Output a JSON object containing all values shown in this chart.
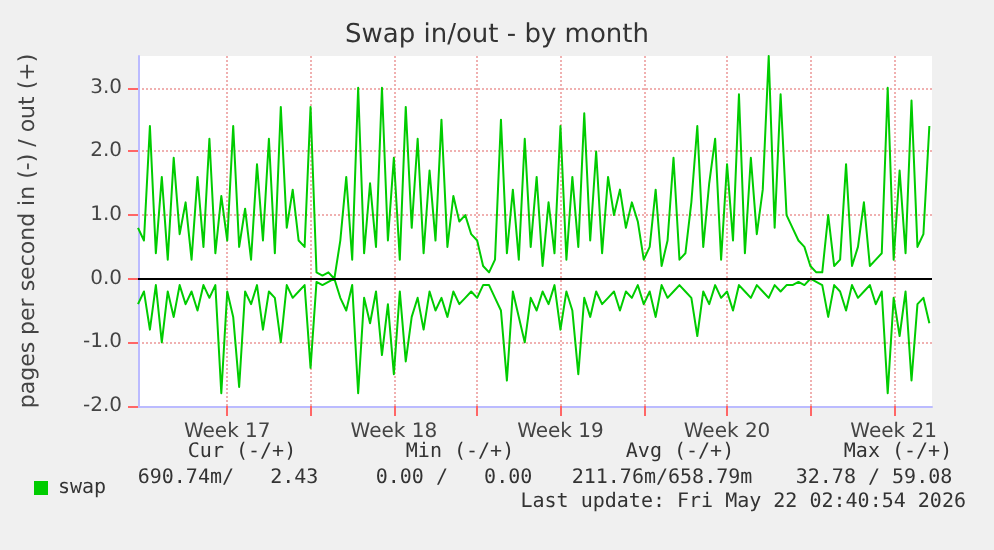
{
  "chart_data": {
    "type": "line",
    "title": "Swap in/out - by month",
    "ylabel": "pages per second in (-) / out (+)",
    "x": [
      "2026-04-18T18:00",
      "2026-04-19T00:00",
      "2026-04-19T06:00",
      "2026-04-19T12:00",
      "2026-04-19T18:00",
      "2026-04-20T00:00",
      "2026-04-20T06:00",
      "2026-04-20T12:00",
      "2026-04-20T18:00",
      "2026-04-21T00:00",
      "2026-04-21T06:00",
      "2026-04-21T12:00",
      "2026-04-21T18:00",
      "2026-04-22T00:00",
      "2026-04-22T06:00",
      "2026-04-22T12:00",
      "2026-04-22T18:00",
      "2026-04-23T00:00",
      "2026-04-23T06:00",
      "2026-04-23T12:00",
      "2026-04-23T18:00",
      "2026-04-24T00:00",
      "2026-04-24T06:00",
      "2026-04-24T12:00",
      "2026-04-24T18:00",
      "2026-04-25T00:00",
      "2026-04-25T06:00",
      "2026-04-25T12:00",
      "2026-04-25T18:00",
      "2026-04-26T00:00",
      "2026-04-26T06:00",
      "2026-04-26T12:00",
      "2026-04-26T18:00",
      "2026-04-27T00:00",
      "2026-04-27T06:00",
      "2026-04-27T12:00",
      "2026-04-27T18:00",
      "2026-04-28T00:00",
      "2026-04-28T06:00",
      "2026-04-28T12:00",
      "2026-04-28T18:00",
      "2026-04-29T00:00",
      "2026-04-29T06:00",
      "2026-04-29T12:00",
      "2026-04-29T18:00",
      "2026-04-30T00:00",
      "2026-04-30T06:00",
      "2026-04-30T12:00",
      "2026-04-30T18:00",
      "2026-05-01T00:00",
      "2026-05-01T06:00",
      "2026-05-01T12:00",
      "2026-05-01T18:00",
      "2026-05-02T00:00",
      "2026-05-02T06:00",
      "2026-05-02T12:00",
      "2026-05-02T18:00",
      "2026-05-03T00:00",
      "2026-05-03T06:00",
      "2026-05-03T12:00",
      "2026-05-03T18:00",
      "2026-05-04T00:00",
      "2026-05-04T06:00",
      "2026-05-04T12:00",
      "2026-05-04T18:00",
      "2026-05-05T00:00",
      "2026-05-05T06:00",
      "2026-05-05T12:00",
      "2026-05-05T18:00",
      "2026-05-06T00:00",
      "2026-05-06T06:00",
      "2026-05-06T12:00",
      "2026-05-06T18:00",
      "2026-05-07T00:00",
      "2026-05-07T06:00",
      "2026-05-07T12:00",
      "2026-05-07T18:00",
      "2026-05-08T00:00",
      "2026-05-08T06:00",
      "2026-05-08T12:00",
      "2026-05-08T18:00",
      "2026-05-09T00:00",
      "2026-05-09T06:00",
      "2026-05-09T12:00",
      "2026-05-09T18:00",
      "2026-05-10T00:00",
      "2026-05-10T06:00",
      "2026-05-10T12:00",
      "2026-05-10T18:00",
      "2026-05-11T00:00",
      "2026-05-11T06:00",
      "2026-05-11T12:00",
      "2026-05-11T18:00",
      "2026-05-12T00:00",
      "2026-05-12T06:00",
      "2026-05-12T12:00",
      "2026-05-12T18:00",
      "2026-05-13T00:00",
      "2026-05-13T06:00",
      "2026-05-13T12:00",
      "2026-05-13T18:00",
      "2026-05-14T00:00",
      "2026-05-14T06:00",
      "2026-05-14T12:00",
      "2026-05-14T18:00",
      "2026-05-15T00:00",
      "2026-05-15T06:00",
      "2026-05-15T12:00",
      "2026-05-15T18:00",
      "2026-05-16T00:00",
      "2026-05-16T06:00",
      "2026-05-16T12:00",
      "2026-05-16T18:00",
      "2026-05-17T00:00",
      "2026-05-17T06:00",
      "2026-05-17T12:00",
      "2026-05-17T18:00",
      "2026-05-18T00:00",
      "2026-05-18T06:00",
      "2026-05-18T12:00",
      "2026-05-18T18:00",
      "2026-05-19T00:00",
      "2026-05-19T06:00",
      "2026-05-19T12:00",
      "2026-05-19T18:00",
      "2026-05-20T00:00",
      "2026-05-20T06:00",
      "2026-05-20T12:00",
      "2026-05-20T18:00",
      "2026-05-21T00:00",
      "2026-05-21T06:00",
      "2026-05-21T12:00",
      "2026-05-21T18:00",
      "2026-05-22T00:00"
    ],
    "series": [
      {
        "name": "swap",
        "color": "#00cc00",
        "values": [
          0.8,
          0.6,
          2.4,
          0.4,
          1.6,
          0.3,
          1.9,
          0.7,
          1.2,
          0.3,
          1.6,
          0.5,
          2.2,
          0.4,
          1.3,
          0.6,
          2.4,
          0.5,
          1.1,
          0.3,
          1.8,
          0.6,
          2.2,
          0.4,
          2.7,
          0.8,
          1.4,
          0.6,
          0.5,
          2.7,
          0.1,
          0.05,
          0.1,
          0.0,
          0.6,
          1.6,
          0.3,
          3.0,
          0.4,
          1.5,
          0.5,
          3.0,
          0.6,
          1.9,
          0.3,
          2.7,
          0.8,
          2.2,
          0.4,
          1.7,
          0.6,
          2.5,
          0.5,
          1.3,
          0.9,
          1.0,
          0.7,
          0.6,
          0.2,
          0.1,
          0.3,
          2.5,
          0.4,
          1.4,
          0.3,
          2.2,
          0.5,
          1.6,
          0.2,
          1.2,
          0.4,
          2.4,
          0.3,
          1.6,
          0.5,
          2.6,
          0.6,
          2.0,
          0.4,
          1.6,
          1.0,
          1.4,
          0.8,
          1.2,
          0.9,
          0.3,
          0.5,
          1.4,
          0.2,
          0.6,
          1.9,
          0.3,
          0.4,
          1.2,
          2.4,
          0.5,
          1.5,
          2.2,
          0.3,
          1.8,
          0.6,
          2.9,
          0.4,
          1.9,
          0.7,
          1.4,
          3.5,
          0.8,
          2.9,
          1.0,
          0.8,
          0.6,
          0.5,
          0.2,
          0.1,
          0.1,
          1.0,
          0.2,
          0.3,
          1.8,
          0.2,
          0.5,
          1.2,
          0.2,
          0.3,
          0.4,
          3.0,
          0.3,
          1.7,
          0.4,
          2.8,
          0.5,
          0.7,
          2.4
        ]
      },
      {
        "color": "#00cc00",
        "values": [
          -0.4,
          -0.2,
          -0.8,
          -0.1,
          -1.0,
          -0.2,
          -0.6,
          -0.1,
          -0.4,
          -0.2,
          -0.5,
          -0.1,
          -0.3,
          -0.1,
          -1.8,
          -0.2,
          -0.6,
          -1.7,
          -0.2,
          -0.4,
          -0.1,
          -0.8,
          -0.2,
          -0.3,
          -1.0,
          -0.1,
          -0.3,
          -0.2,
          -0.1,
          -1.4,
          -0.05,
          -0.1,
          -0.05,
          0.0,
          -0.3,
          -0.5,
          -0.1,
          -1.8,
          -0.3,
          -0.7,
          -0.2,
          -1.2,
          -0.4,
          -1.5,
          -0.2,
          -1.3,
          -0.6,
          -0.3,
          -0.8,
          -0.2,
          -0.5,
          -0.3,
          -0.6,
          -0.2,
          -0.4,
          -0.3,
          -0.2,
          -0.3,
          -0.1,
          -0.1,
          -0.3,
          -0.5,
          -1.6,
          -0.2,
          -0.6,
          -1.0,
          -0.3,
          -0.5,
          -0.2,
          -0.4,
          -0.1,
          -0.8,
          -0.2,
          -0.5,
          -1.5,
          -0.3,
          -0.6,
          -0.2,
          -0.4,
          -0.3,
          -0.2,
          -0.5,
          -0.2,
          -0.3,
          -0.1,
          -0.4,
          -0.2,
          -0.6,
          -0.1,
          -0.3,
          -0.2,
          -0.1,
          -0.2,
          -0.3,
          -0.9,
          -0.2,
          -0.4,
          -0.1,
          -0.3,
          -0.2,
          -0.5,
          -0.1,
          -0.2,
          -0.3,
          -0.1,
          -0.2,
          -0.3,
          -0.1,
          -0.2,
          -0.1,
          -0.1,
          -0.05,
          -0.1,
          0.0,
          -0.05,
          -0.1,
          -0.6,
          -0.1,
          -0.2,
          -0.5,
          -0.1,
          -0.3,
          -0.2,
          -0.1,
          -0.4,
          -0.2,
          -1.8,
          -0.3,
          -0.9,
          -0.2,
          -1.6,
          -0.4,
          -0.3,
          -0.7
        ]
      }
    ],
    "xlim": [
      "2026-04-18T18:00",
      "2026-05-22T02:40"
    ],
    "xticks": [
      {
        "value": "2026-04-22T12:00",
        "label": "Week 17"
      },
      {
        "value": "2026-04-26",
        "label": null
      },
      {
        "value": "2026-04-29T12:00",
        "label": "Week 18"
      },
      {
        "value": "2026-05-03",
        "label": null
      },
      {
        "value": "2026-05-06T12:00",
        "label": "Week 19"
      },
      {
        "value": "2026-05-10",
        "label": null
      },
      {
        "value": "2026-05-13T12:00",
        "label": "Week 20"
      },
      {
        "value": "2026-05-17",
        "label": null
      },
      {
        "value": "2026-05-20T12:00",
        "label": "Week 21"
      }
    ],
    "ylim": [
      -2,
      3.5
    ],
    "yticks": [
      {
        "value": -2,
        "label": "-2.0"
      },
      {
        "value": -1,
        "label": "-1.0"
      },
      {
        "value": 0,
        "label": "0.0"
      },
      {
        "value": 1,
        "label": "1.0"
      },
      {
        "value": 2,
        "label": "2.0"
      },
      {
        "value": 3,
        "label": "3.0"
      }
    ],
    "ref_lines": [
      {
        "axis": "y",
        "value": 0,
        "color": "#000000"
      }
    ],
    "grid": true,
    "legend": "bottom left",
    "annotations": [
      "Cur (-/+)",
      "Min (-/+)",
      "Avg (-/+)",
      "Max (-/+)",
      "690.74m/   2.43",
      "0.00 /   0.00",
      "211.76m/658.79m",
      "32.78 / 59.08",
      "Last update: Fri May 22 02:40:54 2026"
    ]
  }
}
